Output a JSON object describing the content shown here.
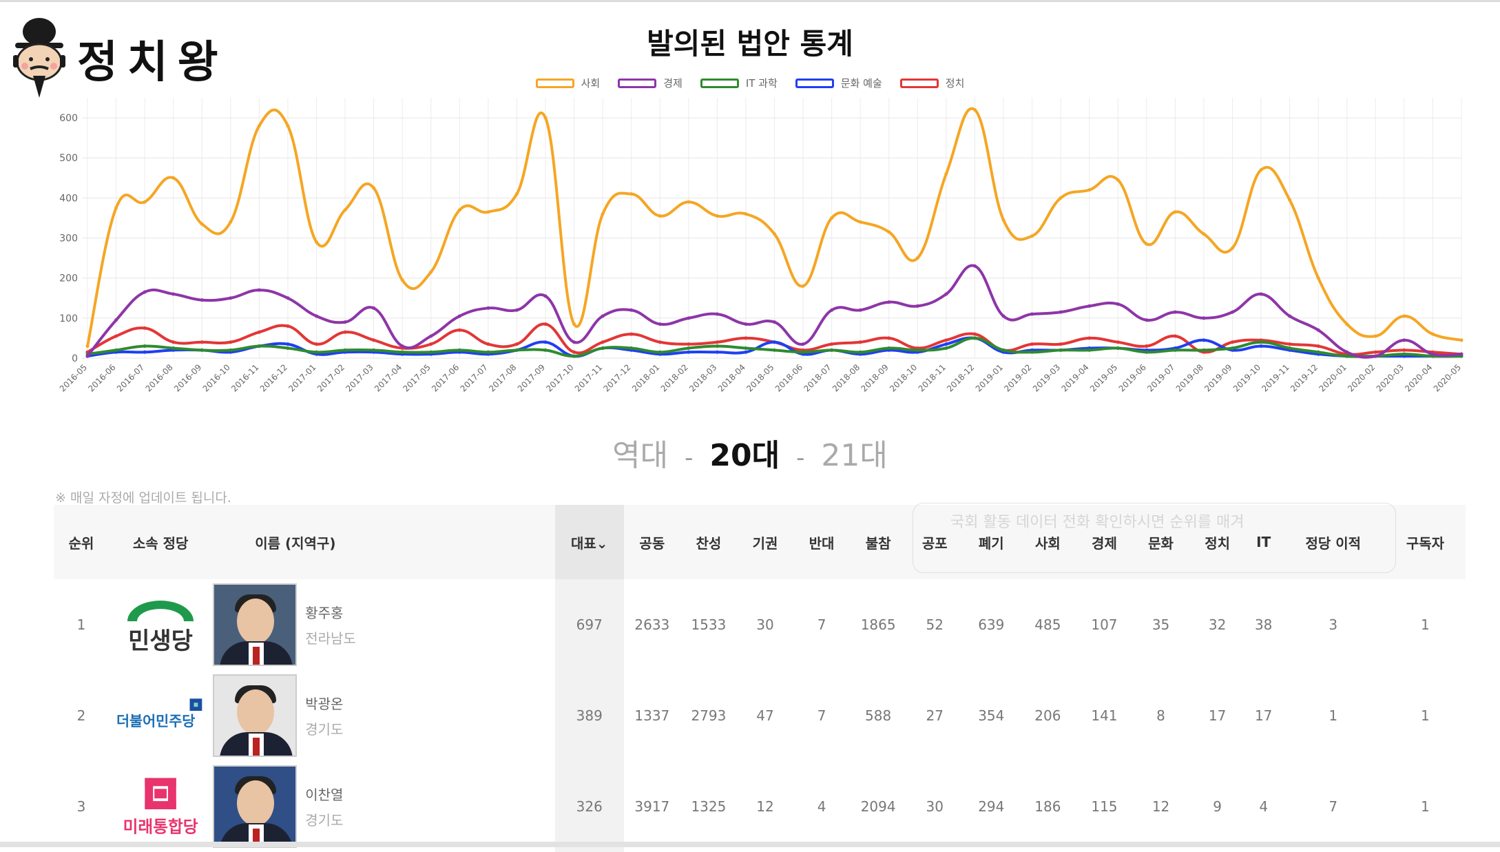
{
  "logo": {
    "text": "정치왕"
  },
  "page": {
    "era_prefix": "역대",
    "era_active": "20대",
    "era_next": "21대",
    "era_sep": "-",
    "update_note": "※ 매일 자정에 업데이트 됩니다.",
    "overlay_note": "국회 활동 데이터 전화 확인하시면 순위를 매겨"
  },
  "chart_data": {
    "type": "line",
    "title": "발의된 법안 통계",
    "x": [
      "2016-05",
      "2016-06",
      "2016-07",
      "2016-08",
      "2016-09",
      "2016-10",
      "2016-11",
      "2016-12",
      "2017-01",
      "2017-02",
      "2017-03",
      "2017-04",
      "2017-05",
      "2017-06",
      "2017-07",
      "2017-08",
      "2017-09",
      "2017-10",
      "2017-11",
      "2017-12",
      "2018-01",
      "2018-02",
      "2018-03",
      "2018-04",
      "2018-05",
      "2018-06",
      "2018-07",
      "2018-08",
      "2018-09",
      "2018-10",
      "2018-11",
      "2018-12",
      "2019-01",
      "2019-02",
      "2019-03",
      "2019-04",
      "2019-05",
      "2019-06",
      "2019-07",
      "2019-08",
      "2019-09",
      "2019-10",
      "2019-11",
      "2019-12",
      "2020-01",
      "2020-02",
      "2020-03",
      "2020-04",
      "2020-05"
    ],
    "ylim": [
      0,
      650
    ],
    "yticks": [
      0,
      100,
      200,
      300,
      400,
      500,
      600
    ],
    "grid": true,
    "legend_position": "top",
    "series": [
      {
        "name": "사회",
        "color": "#f5a623",
        "values": [
          30,
          375,
          390,
          450,
          335,
          340,
          580,
          580,
          290,
          370,
          425,
          195,
          215,
          370,
          365,
          410,
          600,
          85,
          360,
          410,
          355,
          390,
          355,
          360,
          310,
          180,
          350,
          340,
          315,
          250,
          460,
          620,
          345,
          305,
          400,
          420,
          445,
          285,
          365,
          310,
          275,
          470,
          395,
          200,
          85,
          55,
          105,
          60,
          45
        ]
      },
      {
        "name": "경제",
        "color": "#8e35a8",
        "values": [
          5,
          95,
          165,
          160,
          145,
          150,
          170,
          150,
          105,
          90,
          125,
          30,
          55,
          105,
          125,
          120,
          155,
          40,
          105,
          120,
          85,
          100,
          110,
          85,
          90,
          35,
          120,
          120,
          140,
          130,
          160,
          230,
          105,
          110,
          115,
          130,
          135,
          95,
          115,
          100,
          115,
          160,
          105,
          70,
          15,
          5,
          45,
          10,
          10
        ]
      },
      {
        "name": "IT 과학",
        "color": "#2e8b2e",
        "values": [
          10,
          20,
          30,
          25,
          20,
          20,
          30,
          25,
          15,
          20,
          20,
          15,
          15,
          20,
          15,
          20,
          20,
          5,
          25,
          25,
          15,
          25,
          30,
          25,
          20,
          15,
          20,
          15,
          25,
          20,
          25,
          50,
          20,
          15,
          20,
          20,
          25,
          15,
          20,
          20,
          25,
          40,
          25,
          15,
          5,
          5,
          10,
          5,
          5
        ]
      },
      {
        "name": "문화 예술",
        "color": "#1f3ff2",
        "values": [
          5,
          15,
          15,
          20,
          20,
          15,
          30,
          35,
          10,
          15,
          15,
          10,
          10,
          15,
          10,
          20,
          40,
          5,
          25,
          20,
          10,
          15,
          15,
          15,
          40,
          10,
          20,
          10,
          20,
          15,
          35,
          50,
          15,
          20,
          20,
          25,
          25,
          20,
          25,
          45,
          20,
          30,
          20,
          10,
          5,
          5,
          5,
          5,
          5
        ]
      },
      {
        "name": "정치",
        "color": "#e33636",
        "values": [
          15,
          55,
          75,
          40,
          40,
          40,
          65,
          80,
          35,
          65,
          45,
          25,
          35,
          70,
          35,
          35,
          85,
          15,
          40,
          60,
          40,
          35,
          40,
          50,
          40,
          20,
          35,
          40,
          50,
          25,
          45,
          60,
          20,
          35,
          35,
          50,
          40,
          30,
          55,
          15,
          40,
          45,
          35,
          30,
          10,
          15,
          20,
          15,
          10
        ]
      }
    ]
  },
  "table": {
    "headers": {
      "rank": "순위",
      "party": "소속 정당",
      "name": "이름 (지역구)",
      "lead": "대표⌄",
      "joint": "공동",
      "yes": "찬성",
      "abstain": "기권",
      "no": "반대",
      "absent": "불참",
      "promulgated": "공포",
      "discarded": "폐기",
      "social": "사회",
      "economy": "경제",
      "culture": "문화",
      "politics": "정치",
      "it": "IT",
      "party_moves": "정당 이적",
      "subscribers": "구독자"
    },
    "rows": [
      {
        "rank": "1",
        "party": "민생당",
        "name": "황주홍",
        "region": "전라남도",
        "lead": "697",
        "joint": "2633",
        "yes": "1533",
        "abstain": "30",
        "no": "7",
        "absent": "1865",
        "promulgated": "52",
        "discarded": "639",
        "social": "485",
        "economy": "107",
        "culture": "35",
        "politics": "32",
        "it": "38",
        "party_moves": "3",
        "subscribers": "1"
      },
      {
        "rank": "2",
        "party": "더불어민주당",
        "name": "박광온",
        "region": "경기도",
        "lead": "389",
        "joint": "1337",
        "yes": "2793",
        "abstain": "47",
        "no": "7",
        "absent": "588",
        "promulgated": "27",
        "discarded": "354",
        "social": "206",
        "economy": "141",
        "culture": "8",
        "politics": "17",
        "it": "17",
        "party_moves": "1",
        "subscribers": "1"
      },
      {
        "rank": "3",
        "party": "미래통합당",
        "name": "이찬열",
        "region": "경기도",
        "lead": "326",
        "joint": "3917",
        "yes": "1325",
        "abstain": "12",
        "no": "4",
        "absent": "2094",
        "promulgated": "30",
        "discarded": "294",
        "social": "186",
        "economy": "115",
        "culture": "12",
        "politics": "9",
        "it": "4",
        "party_moves": "7",
        "subscribers": "1"
      }
    ]
  }
}
